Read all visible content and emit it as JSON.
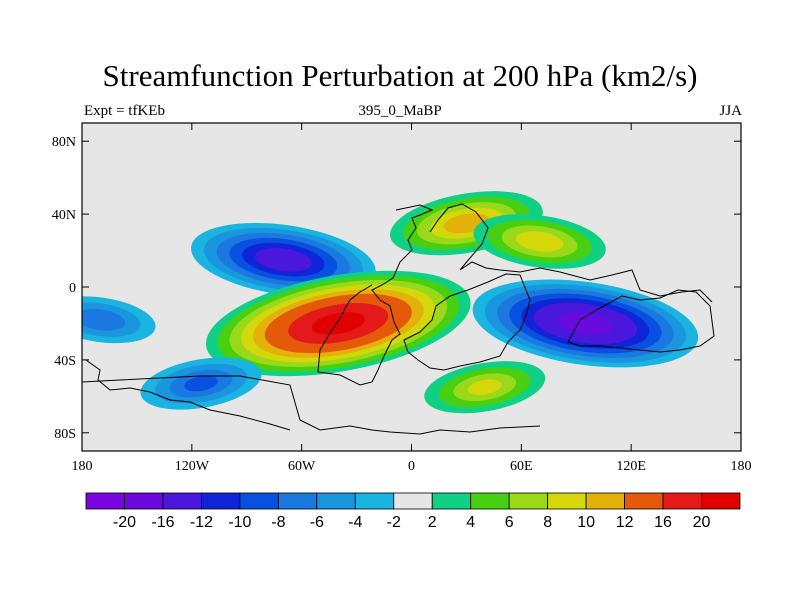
{
  "chart_data": {
    "type": "heatmap",
    "title": "Streamfunction Perturbation at 200 hPa (km2/s)",
    "left_label": "Expt = tfKEb",
    "center_label": "395_0_MaBP",
    "right_label": "JJA",
    "xlim": [
      -180,
      180
    ],
    "ylim": [
      -90,
      90
    ],
    "x_ticks": [
      {
        "value": -180,
        "label": "180"
      },
      {
        "value": -120,
        "label": "120W"
      },
      {
        "value": -60,
        "label": "60W"
      },
      {
        "value": 0,
        "label": "0"
      },
      {
        "value": 60,
        "label": "60E"
      },
      {
        "value": 120,
        "label": "120E"
      },
      {
        "value": 180,
        "label": "180"
      }
    ],
    "y_ticks": [
      {
        "value": 80,
        "label": "80N"
      },
      {
        "value": 40,
        "label": "40N"
      },
      {
        "value": 0,
        "label": "0"
      },
      {
        "value": -40,
        "label": "40S"
      },
      {
        "value": -80,
        "label": "80S"
      }
    ],
    "contour_levels": [
      -20,
      -16,
      -12,
      -10,
      -8,
      -6,
      -4,
      -2,
      2,
      4,
      6,
      8,
      10,
      12,
      16,
      20
    ],
    "colorbar_labels": [
      "-20",
      "-16",
      "-12",
      "-10",
      "-8",
      "-6",
      "-4",
      "-2",
      "2",
      "4",
      "6",
      "8",
      "10",
      "12",
      "16",
      "20"
    ],
    "colors": [
      "#7B05E0",
      "#6A0ADE",
      "#4B17DC",
      "#1024D8",
      "#0850E0",
      "#1A78E0",
      "#1A96DE",
      "#1AB4E0",
      "#E6E6E6",
      "#10D086",
      "#48D010",
      "#9AD81A",
      "#D4D80A",
      "#E4B00A",
      "#E45A0A",
      "#E41A1A",
      "#E00000"
    ],
    "features": [
      {
        "name": "N Pacific low",
        "lon": -70,
        "lat": 15,
        "peak": -14
      },
      {
        "name": "S Atlantic high",
        "lon": -40,
        "lat": -20,
        "peak": 22
      },
      {
        "name": "Indian Ocean low",
        "lon": 95,
        "lat": -20,
        "peak": -18
      },
      {
        "name": "Eurasia high",
        "lon": 30,
        "lat": 35,
        "peak": 11
      },
      {
        "name": "N Africa high",
        "lon": 70,
        "lat": 25,
        "peak": 9
      },
      {
        "name": "S Indian high",
        "lon": 40,
        "lat": -55,
        "peak": 8
      },
      {
        "name": "Pacific low",
        "lon": -170,
        "lat": -18,
        "peak": -7
      },
      {
        "name": "S Pacific low",
        "lon": -115,
        "lat": -53,
        "peak": -8
      }
    ]
  }
}
